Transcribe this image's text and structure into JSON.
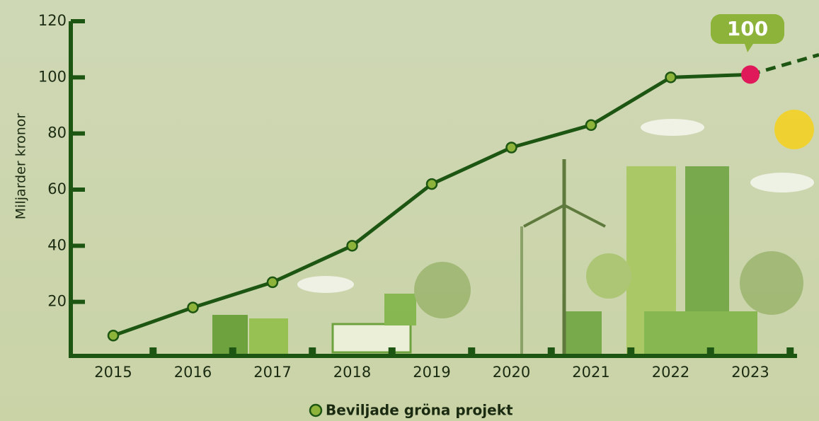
{
  "chart_data": {
    "type": "line",
    "y_label": "Miljarder kronor",
    "annotation": "100",
    "categories": [
      "2015",
      "2016",
      "2017",
      "2018",
      "2019",
      "2020",
      "2021",
      "2022",
      "2023"
    ],
    "series": [
      {
        "name": "Beviljade gröna projekt",
        "color": "#1d5512",
        "marker_color": "#8db33a",
        "values": [
          8,
          18,
          27,
          40,
          62,
          75,
          83,
          100,
          101
        ]
      }
    ],
    "highlight_color": "#e0195a",
    "ylim": [
      0,
      120
    ],
    "yticks": [
      20,
      40,
      60,
      80,
      100,
      120
    ]
  }
}
